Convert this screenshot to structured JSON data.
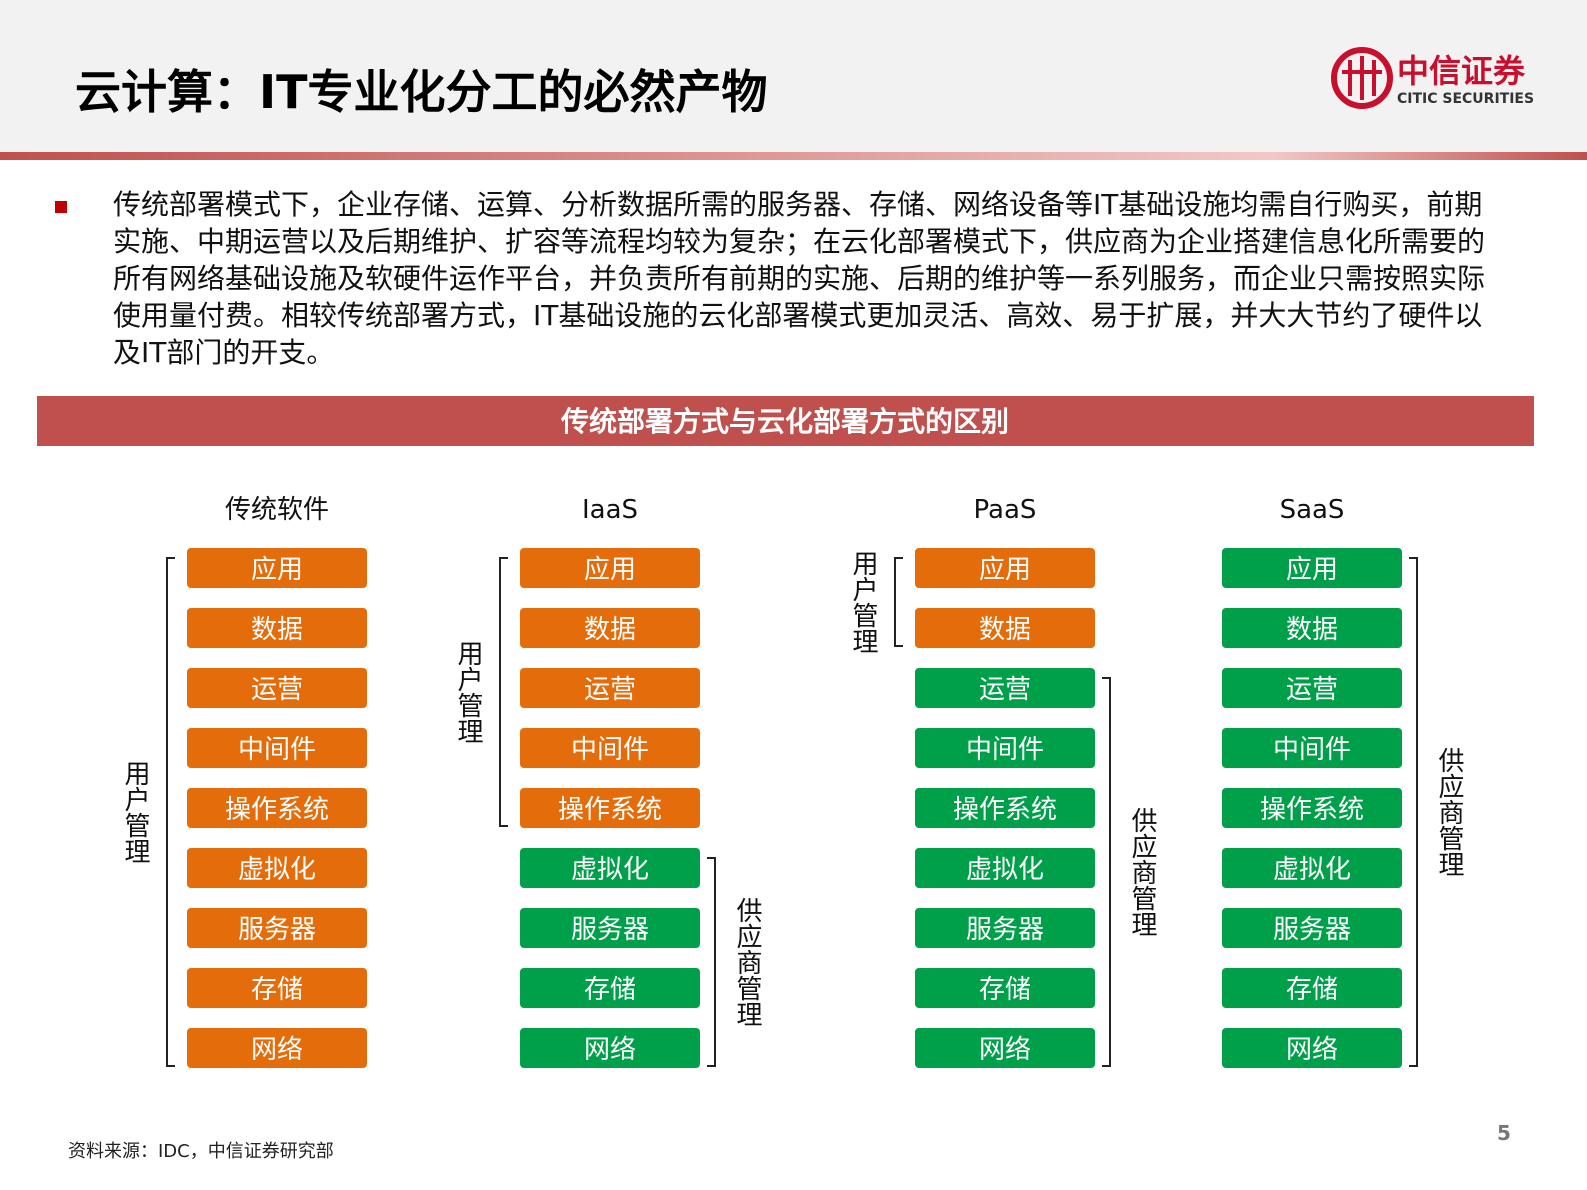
{
  "header": {
    "title": "云计算：IT专业化分工的必然产物",
    "logo_cn": "中信证券",
    "logo_en": "CITIC SECURITIES"
  },
  "bullet": "传统部署模式下，企业存储、运算、分析数据所需的服务器、存储、网络设备等IT基础设施均需自行购买，前期实施、中期运营以及后期维护、扩容等流程均较为复杂；在云化部署模式下，供应商为企业搭建信息化所需要的所有网络基础设施及软硬件运作平台，并负责所有前期的实施、后期的维护等一系列服务，而企业只需按照实际使用量付费。相较传统部署方式，IT基础设施的云化部署模式更加灵活、高效、易于扩展，并大大节约了硬件以及IT部门的开支。",
  "section_title": "传统部署方式与云化部署方式的区别",
  "columns": [
    {
      "title": "传统软件",
      "groups": [
        {
          "label": "用户管理",
          "color": "#e46c0a",
          "items": [
            "应用",
            "数据",
            "运营",
            "中间件",
            "操作系统",
            "虚拟化",
            "服务器",
            "存储",
            "网络"
          ]
        }
      ]
    },
    {
      "title": "IaaS",
      "groups": [
        {
          "label": "用户管理",
          "color": "#e46c0a",
          "items": [
            "应用",
            "数据",
            "运营",
            "中间件",
            "操作系统"
          ]
        },
        {
          "label": "供应商管理",
          "color": "#00a04b",
          "items": [
            "虚拟化",
            "服务器",
            "存储",
            "网络"
          ]
        }
      ]
    },
    {
      "title": "PaaS",
      "groups": [
        {
          "label": "用户管理",
          "color": "#e46c0a",
          "items": [
            "应用",
            "数据"
          ]
        },
        {
          "label": "供应商管理",
          "color": "#00a04b",
          "items": [
            "运营",
            "中间件",
            "操作系统",
            "虚拟化",
            "服务器",
            "存储",
            "网络"
          ]
        }
      ]
    },
    {
      "title": "SaaS",
      "groups": [
        {
          "label": "供应商管理",
          "color": "#00a04b",
          "items": [
            "应用",
            "数据",
            "运营",
            "中间件",
            "操作系统",
            "虚拟化",
            "服务器",
            "存储",
            "网络"
          ]
        }
      ]
    }
  ],
  "footer": {
    "source": "资料来源：IDC，中信证券研究部",
    "page": "5"
  }
}
